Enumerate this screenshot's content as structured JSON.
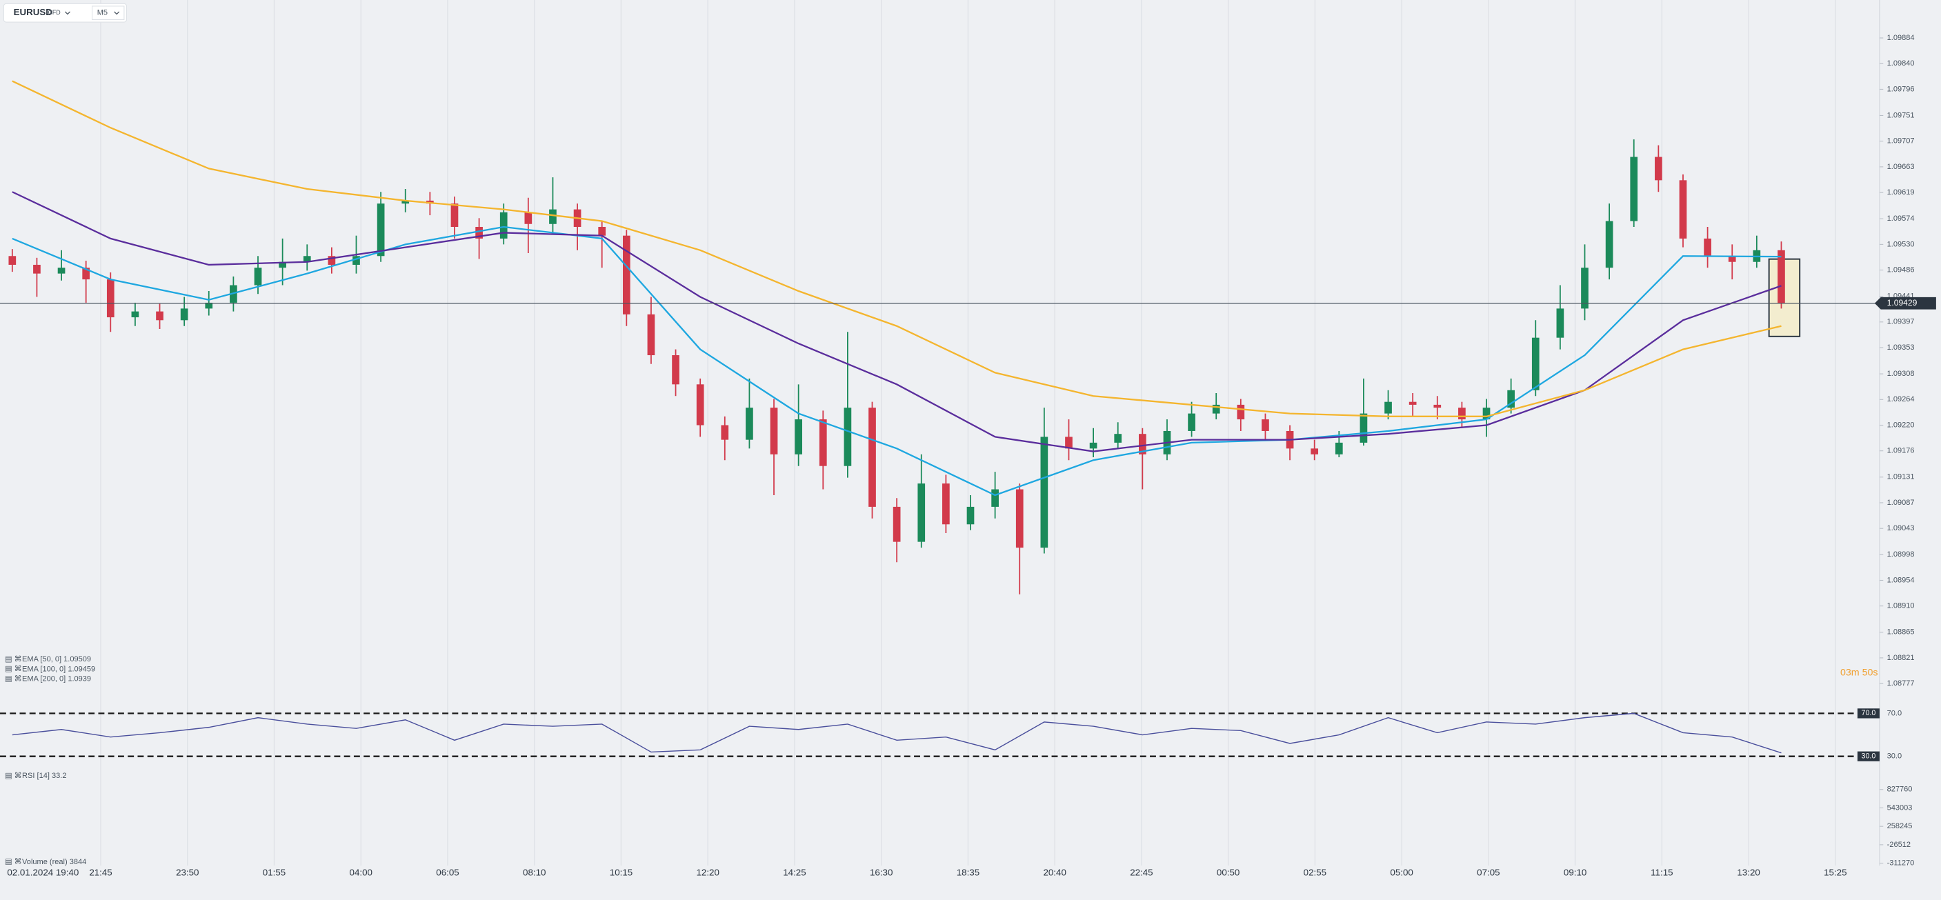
{
  "chart_data": {
    "type": "candlestick",
    "symbol": "EURUSD",
    "instrument": "CFD",
    "timeframe": "M5",
    "countdown": "03m 50s",
    "ylim": [
      1.08749,
      1.09928
    ],
    "yticks": [
      1.09884,
      {
        "value": 1.0984,
        "label": "1.09840"
      },
      1.09796,
      1.09751,
      1.09707,
      1.09663,
      1.09619,
      1.09574,
      {
        "value": 1.0953,
        "label": "1.09530"
      },
      1.09486,
      1.09441,
      1.09397,
      1.09353,
      1.09308,
      1.09264,
      {
        "value": 1.0922,
        "label": "1.09220"
      },
      1.09176,
      1.09131,
      1.09087,
      1.09043,
      1.08998,
      1.08954,
      {
        "value": 1.0891,
        "label": "1.08910"
      },
      1.08865,
      1.08821,
      1.08777
    ],
    "time_labels": [
      "02.01.2024 19:40",
      "21:45",
      "23:50",
      "01:55",
      "04:00",
      "06:05",
      "08:10",
      "10:15",
      "12:20",
      "14:25",
      "16:30",
      "18:35",
      "20:40",
      "22:45",
      "00:50",
      "02:55",
      "05:00",
      "07:05",
      "09:10",
      "11:15",
      "13:20",
      "15:25"
    ],
    "grid": true,
    "up_color": "#1b8a5a",
    "down_color": "#d23a4b",
    "candles": {
      "open": [
        1.0951,
        1.09495,
        1.0948,
        1.0949,
        1.0947,
        1.09405,
        1.09415,
        1.094,
        1.0942,
        1.0943,
        1.0946,
        1.0949,
        1.095,
        1.0951,
        1.09495,
        1.0951,
        1.096,
        1.09605,
        1.096,
        1.0956,
        1.0954,
        1.09585,
        1.09565,
        1.0959,
        1.0956,
        1.09545,
        1.0941,
        1.0934,
        1.0929,
        1.0922,
        1.09195,
        1.0925,
        1.0917,
        1.0923,
        1.0915,
        1.0925,
        1.0908,
        1.0902,
        1.0912,
        1.0905,
        1.0908,
        1.0911,
        1.0901,
        1.092,
        1.0918,
        1.0919,
        1.09205,
        1.0917,
        1.0921,
        1.0924,
        1.09255,
        1.0923,
        1.0921,
        1.0918,
        1.0917,
        1.0919,
        1.0924,
        1.0926,
        1.09255,
        1.0925,
        1.0923,
        1.0925,
        1.0928,
        1.0937,
        1.0942,
        1.0949,
        1.0957,
        1.0968,
        1.0964,
        1.0954,
        1.0951,
        1.095,
        1.0952
      ],
      "high": [
        1.09522,
        1.09507,
        1.0952,
        1.09502,
        1.09482,
        1.0943,
        1.09428,
        1.0944,
        1.0945,
        1.09475,
        1.0951,
        1.0954,
        1.0953,
        1.09525,
        1.09545,
        1.0962,
        1.09625,
        1.0962,
        1.09612,
        1.09575,
        1.096,
        1.0961,
        1.09645,
        1.096,
        1.0957,
        1.09555,
        1.0944,
        1.0935,
        1.093,
        1.09235,
        1.093,
        1.09265,
        1.0929,
        1.09245,
        1.0938,
        1.0926,
        1.09095,
        1.0917,
        1.09135,
        1.091,
        1.0914,
        1.0912,
        1.0925,
        1.0923,
        1.09215,
        1.09225,
        1.09215,
        1.0923,
        1.0926,
        1.09275,
        1.09265,
        1.0924,
        1.0922,
        1.09195,
        1.0921,
        1.093,
        1.0928,
        1.09275,
        1.0927,
        1.0926,
        1.09265,
        1.093,
        1.094,
        1.0946,
        1.0953,
        1.096,
        1.0971,
        1.097,
        1.0965,
        1.0956,
        1.0953,
        1.09545,
        1.09535
      ],
      "low": [
        1.09483,
        1.0944,
        1.09468,
        1.0943,
        1.0938,
        1.0939,
        1.09385,
        1.0939,
        1.09408,
        1.09415,
        1.09445,
        1.0946,
        1.09485,
        1.0948,
        1.0948,
        1.095,
        1.09585,
        1.0958,
        1.0954,
        1.09505,
        1.0953,
        1.09515,
        1.0955,
        1.0952,
        1.0949,
        1.0939,
        1.09325,
        1.0927,
        1.092,
        1.0916,
        1.0918,
        1.091,
        1.0915,
        1.0911,
        1.0913,
        1.0906,
        1.08985,
        1.0901,
        1.09035,
        1.0904,
        1.0906,
        1.0893,
        1.09,
        1.0916,
        1.09165,
        1.0918,
        1.0911,
        1.0916,
        1.092,
        1.0923,
        1.0921,
        1.09195,
        1.0916,
        1.0916,
        1.09165,
        1.09185,
        1.0923,
        1.09235,
        1.0923,
        1.09215,
        1.092,
        1.0924,
        1.0927,
        1.0935,
        1.094,
        1.0947,
        1.0956,
        1.0962,
        1.09525,
        1.0949,
        1.0947,
        1.0949,
        1.0942
      ],
      "close": [
        1.09495,
        1.0948,
        1.0949,
        1.0947,
        1.09405,
        1.09415,
        1.094,
        1.0942,
        1.0943,
        1.0946,
        1.0949,
        1.095,
        1.0951,
        1.09495,
        1.0951,
        1.096,
        1.09605,
        1.096,
        1.0956,
        1.0954,
        1.09585,
        1.09565,
        1.0959,
        1.0956,
        1.09545,
        1.0941,
        1.0934,
        1.0929,
        1.0922,
        1.09195,
        1.0925,
        1.0917,
        1.0923,
        1.0915,
        1.0925,
        1.0908,
        1.0902,
        1.0912,
        1.0905,
        1.0908,
        1.0911,
        1.0901,
        1.092,
        1.0918,
        1.0919,
        1.09205,
        1.0917,
        1.0921,
        1.0924,
        1.09255,
        1.0923,
        1.0921,
        1.0918,
        1.0917,
        1.0919,
        1.0924,
        1.0926,
        1.09255,
        1.0925,
        1.0923,
        1.0925,
        1.0928,
        1.0937,
        1.0942,
        1.0949,
        1.0957,
        1.0968,
        1.0964,
        1.0954,
        1.0951,
        1.095,
        1.0952,
        1.09429
      ]
    },
    "ema_x": [
      0,
      4,
      8,
      12,
      16,
      20,
      24,
      28,
      32,
      36,
      40,
      44,
      48,
      52,
      56,
      60,
      64,
      68,
      72
    ],
    "series": [
      {
        "name": "EMA [50, 0]",
        "color": "#1ea7e0",
        "values": [
          1.0954,
          1.0947,
          1.09435,
          1.0948,
          1.0953,
          1.0956,
          1.0954,
          1.0935,
          1.0924,
          1.0918,
          1.091,
          1.0916,
          1.0919,
          1.09195,
          1.0921,
          1.0923,
          1.0934,
          1.0951,
          1.09509
        ]
      },
      {
        "name": "EMA [100, 0]",
        "color": "#5a2d9c",
        "values": [
          1.0962,
          1.0954,
          1.09495,
          1.095,
          1.09525,
          1.0955,
          1.09545,
          1.0944,
          1.0936,
          1.0929,
          1.092,
          1.09175,
          1.09195,
          1.09195,
          1.09205,
          1.0922,
          1.0928,
          1.094,
          1.09459
        ]
      },
      {
        "name": "EMA [200, 0]",
        "color": "#f4b52e",
        "values": [
          1.0981,
          1.0973,
          1.0966,
          1.09625,
          1.09605,
          1.0959,
          1.0957,
          1.0952,
          1.0945,
          1.0939,
          1.0931,
          1.0927,
          1.09255,
          1.0924,
          1.09235,
          1.09235,
          1.0928,
          1.0935,
          1.0939
        ]
      }
    ],
    "rsi": {
      "name": "RSI [14]",
      "color": "#4a4f9c",
      "ylim": [
        19.7,
        80.3
      ],
      "levels": [
        {
          "value": 70,
          "label": "70.0"
        },
        {
          "value": 30,
          "label": "30.0"
        }
      ],
      "x": [
        0,
        2,
        4,
        6,
        8,
        10,
        12,
        14,
        16,
        18,
        20,
        22,
        24,
        26,
        28,
        30,
        32,
        34,
        36,
        38,
        40,
        42,
        44,
        46,
        48,
        50,
        52,
        54,
        56,
        58,
        60,
        62,
        64,
        66,
        68,
        70,
        72
      ],
      "values": [
        50,
        55,
        48,
        52,
        57,
        66,
        60,
        56,
        64,
        45,
        60,
        58,
        60,
        34,
        36,
        58,
        55,
        60,
        45,
        48,
        36,
        62,
        58,
        50,
        56,
        54,
        42,
        50,
        66,
        52,
        62,
        60,
        66,
        70,
        52,
        48,
        33.2
      ]
    },
    "volume": {
      "name": "Volume (real)",
      "last": 3844,
      "ylim": [
        -349237,
        960650
      ],
      "yticks": [
        827760,
        543003,
        258245,
        -26512,
        -311270
      ]
    }
  }
}
